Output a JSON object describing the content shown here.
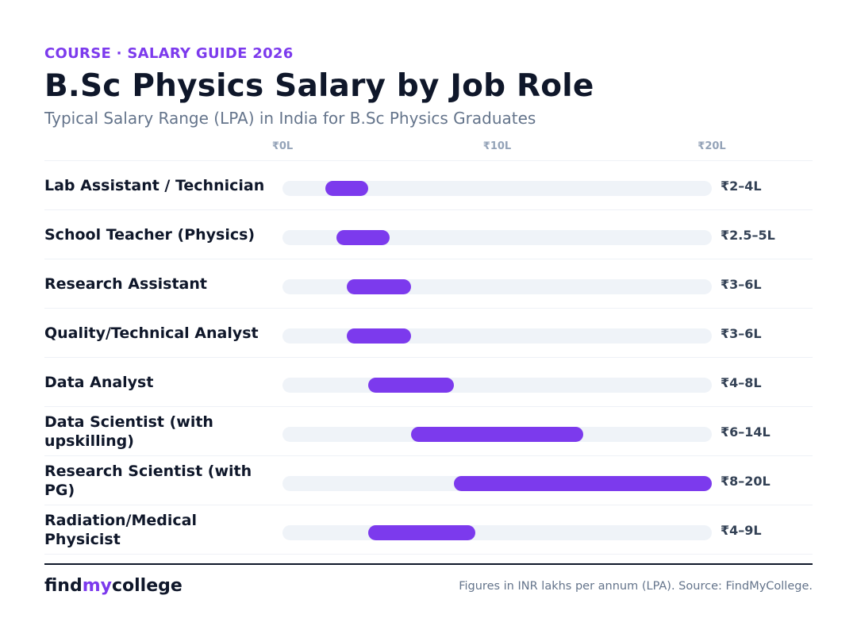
{
  "header": {
    "eyebrow": "COURSE · SALARY GUIDE 2026",
    "title": "B.Sc Physics Salary by Job Role",
    "subtitle": "Typical Salary Range (LPA) in India for B.Sc Physics Graduates"
  },
  "chart_data": {
    "type": "bar",
    "orientation": "horizontal",
    "bar_style": "floating-range",
    "title": "B.Sc Physics Salary by Job Role",
    "subtitle": "Typical Salary Range (LPA) in India for B.Sc Physics Graduates",
    "xlim": [
      0,
      20
    ],
    "x_ticks": [
      0,
      10,
      20
    ],
    "x_tick_labels": [
      "₹0L",
      "₹10L",
      "₹20L"
    ],
    "categories": [
      "Lab Assistant / Technician",
      "School Teacher (Physics)",
      "Research Assistant",
      "Quality/Technical Analyst",
      "Data Analyst",
      "Data Scientist (with upskilling)",
      "Research Scientist (with PG)",
      "Radiation/Medical Physicist"
    ],
    "low": [
      2,
      2.5,
      3,
      3,
      4,
      6,
      8,
      4
    ],
    "high": [
      4,
      5,
      6,
      6,
      8,
      14,
      20,
      9
    ],
    "range_labels": [
      "₹2–4L",
      "₹2.5–5L",
      "₹3–6L",
      "₹3–6L",
      "₹4–8L",
      "₹6–14L",
      "₹8–20L",
      "₹4–9L"
    ],
    "bar_color": "#7c3aed",
    "track_color": "#eff3f8",
    "grid": false
  },
  "footer": {
    "brand_part1": "find",
    "brand_part2": "my",
    "brand_part3": "college",
    "source": "Figures in INR lakhs per annum (LPA). Source: FindMyCollege."
  },
  "colors": {
    "accent": "#7c3aed",
    "heading": "#0f172a",
    "muted": "#64748b"
  }
}
